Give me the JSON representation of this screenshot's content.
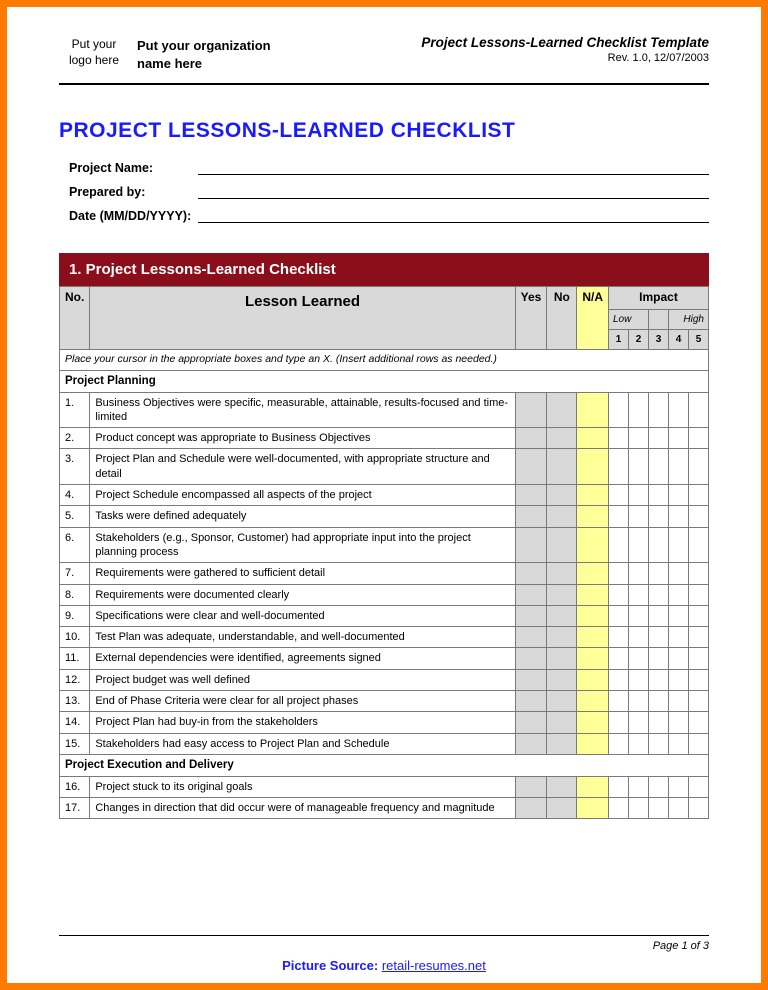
{
  "frame": {
    "border_color": "#ff7b00",
    "border_width": 7
  },
  "header": {
    "logo_placeholder": "Put your logo here",
    "org_placeholder": "Put your organization name here",
    "doc_title": "Project Lessons-Learned Checklist Template",
    "revision": "Rev. 1.0, 12/07/2003"
  },
  "main_title": "PROJECT LESSONS-LEARNED CHECKLIST",
  "main_title_color": "#1a1aff",
  "meta": {
    "project_name_label": "Project Name:",
    "prepared_by_label": "Prepared by:",
    "date_label": "Date (MM/DD/YYYY):"
  },
  "section_bar": {
    "text": "1.  Project Lessons-Learned Checklist",
    "bg_color": "#8b0f1a",
    "text_color": "#ffffff"
  },
  "table": {
    "headers": {
      "no": "No.",
      "lesson": "Lesson Learned",
      "yes": "Yes",
      "no_col": "No",
      "na": "N/A",
      "impact": "Impact",
      "low": "Low",
      "high": "High",
      "scale": [
        "1",
        "2",
        "3",
        "4",
        "5"
      ]
    },
    "header_bg": "#d9d9d9",
    "na_bg": "#ffff99",
    "border_color": "#7a7a7a",
    "instruction": "Place your cursor in the appropriate boxes and type an X. (Insert additional rows as needed.)",
    "categories": [
      {
        "name": "Project Planning",
        "items": [
          {
            "no": "1.",
            "text": "Business Objectives were specific, measurable, attainable, results-focused and time-limited"
          },
          {
            "no": "2.",
            "text": "Product concept was appropriate to Business Objectives"
          },
          {
            "no": "3.",
            "text": "Project Plan and Schedule were well-documented, with appropriate structure and detail"
          },
          {
            "no": "4.",
            "text": "Project Schedule encompassed all aspects of the project"
          },
          {
            "no": "5.",
            "text": "Tasks were defined adequately"
          },
          {
            "no": "6.",
            "text": "Stakeholders (e.g., Sponsor, Customer) had appropriate input into the project planning process"
          },
          {
            "no": "7.",
            "text": "Requirements were gathered to sufficient detail"
          },
          {
            "no": "8.",
            "text": "Requirements were documented clearly"
          },
          {
            "no": "9.",
            "text": "Specifications were clear and well-documented"
          },
          {
            "no": "10.",
            "text": "Test Plan was adequate, understandable, and well-documented"
          },
          {
            "no": "11.",
            "text": "External dependencies were identified, agreements signed"
          },
          {
            "no": "12.",
            "text": "Project budget was well defined"
          },
          {
            "no": "13.",
            "text": "End of Phase Criteria were clear for all project phases"
          },
          {
            "no": "14.",
            "text": "Project Plan had buy-in from the stakeholders"
          },
          {
            "no": "15.",
            "text": "Stakeholders had easy access to Project Plan and Schedule"
          }
        ]
      },
      {
        "name": "Project Execution and Delivery",
        "items": [
          {
            "no": "16.",
            "text": "Project stuck to its original goals"
          },
          {
            "no": "17.",
            "text": "Changes in direction that did occur were of manageable frequency and magnitude"
          }
        ]
      }
    ]
  },
  "footer": {
    "page_num": "Page 1 of 3",
    "caption_label": "Picture Source:",
    "caption_source": "retail-resumes.net"
  }
}
